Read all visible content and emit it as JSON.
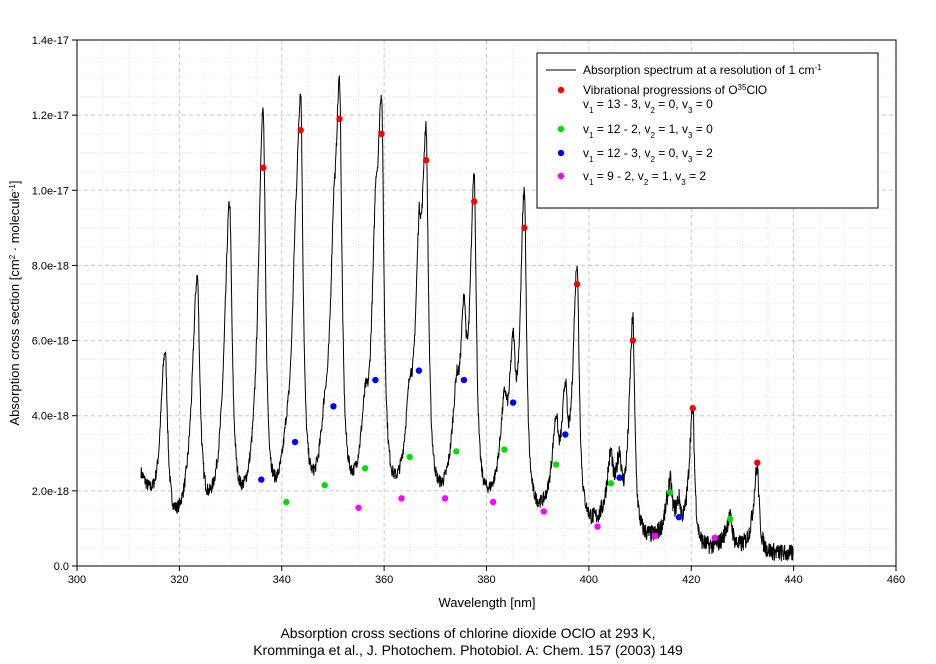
{
  "chart_data": {
    "type": "line",
    "xlabel": "Wavelength [nm]",
    "ylabel_parts": [
      "Absorption cross section [cm",
      "2",
      " · molecule",
      "-1",
      "]"
    ],
    "xlim": [
      300,
      460
    ],
    "ylim": [
      0,
      1.4e-17
    ],
    "x_ticks": [
      300,
      320,
      340,
      360,
      380,
      400,
      420,
      440,
      460
    ],
    "x_tick_labels": [
      "300",
      "320",
      "340",
      "360",
      "380",
      "400",
      "420",
      "440",
      "460"
    ],
    "y_ticks": [
      0,
      2e-18,
      4e-18,
      6e-18,
      8e-18,
      1e-17,
      1.2e-17,
      1.4e-17
    ],
    "y_tick_labels": [
      "0.0",
      "2.0e-18",
      "4.0e-18",
      "6.0e-18",
      "8.0e-18",
      "1.0e-17",
      "1.2e-17",
      "1.4e-17"
    ],
    "grid": true,
    "legend_position": "top-right",
    "spectrum": {
      "name": "Absorption spectrum at a resolution of 1 cm-1",
      "color": "#000000",
      "x_range": [
        312.5,
        440
      ],
      "baseline_points": [
        [
          312.5,
          2e-18
        ],
        [
          316,
          3e-19
        ],
        [
          322,
          5.5e-19
        ],
        [
          328,
          6.5e-19
        ],
        [
          334,
          7e-19
        ],
        [
          341,
          8e-19
        ],
        [
          348,
          9e-19
        ],
        [
          355,
          1e-18
        ],
        [
          363,
          1.05e-18
        ],
        [
          371,
          1.1e-18
        ],
        [
          380,
          1.15e-18
        ],
        [
          390,
          1e-18
        ],
        [
          400,
          8.5e-19
        ],
        [
          410,
          6e-19
        ],
        [
          420,
          4e-19
        ],
        [
          430,
          3.5e-19
        ],
        [
          440,
          3e-19
        ]
      ],
      "peaks": [
        {
          "x": 317.2,
          "y": 5.3e-18,
          "w": 0.55
        },
        {
          "x": 323.5,
          "y": 7.2e-18,
          "w": 0.55
        },
        {
          "x": 329.8,
          "y": 9.1e-18,
          "w": 0.55
        },
        {
          "x": 336.4,
          "y": 1.06e-17,
          "w": 0.5
        },
        {
          "x": 343.7,
          "y": 1.16e-17,
          "w": 0.5
        },
        {
          "x": 351.3,
          "y": 1.19e-17,
          "w": 0.5
        },
        {
          "x": 359.5,
          "y": 1.15e-17,
          "w": 0.5
        },
        {
          "x": 368.2,
          "y": 1.08e-17,
          "w": 0.5
        },
        {
          "x": 377.6,
          "y": 9.9e-18,
          "w": 0.45
        },
        {
          "x": 387.4,
          "y": 9.6e-18,
          "w": 0.45
        },
        {
          "x": 397.7,
          "y": 7.8e-18,
          "w": 0.45
        },
        {
          "x": 408.6,
          "y": 6.4e-18,
          "w": 0.4
        },
        {
          "x": 420.3,
          "y": 4.1e-18,
          "w": 0.4
        },
        {
          "x": 432.9,
          "y": 2.6e-18,
          "w": 0.4
        },
        {
          "x": 336.0,
          "y": 2.1e-18,
          "w": 0.45
        },
        {
          "x": 342.6,
          "y": 3.2e-18,
          "w": 0.45
        },
        {
          "x": 350.1,
          "y": 4.2e-18,
          "w": 0.45
        },
        {
          "x": 358.3,
          "y": 4.8e-18,
          "w": 0.45
        },
        {
          "x": 366.8,
          "y": 5.2e-18,
          "w": 0.45
        },
        {
          "x": 375.6,
          "y": 5e-18,
          "w": 0.45
        },
        {
          "x": 385.2,
          "y": 4.4e-18,
          "w": 0.45
        },
        {
          "x": 395.4,
          "y": 3.6e-18,
          "w": 0.4
        },
        {
          "x": 406.0,
          "y": 2.3e-18,
          "w": 0.4
        },
        {
          "x": 417.6,
          "y": 1.3e-18,
          "w": 0.4
        },
        {
          "x": 340.9,
          "y": 1.5e-18,
          "w": 0.5
        },
        {
          "x": 348.4,
          "y": 2e-18,
          "w": 0.5
        },
        {
          "x": 356.3,
          "y": 2.5e-18,
          "w": 0.5
        },
        {
          "x": 365.0,
          "y": 2.8e-18,
          "w": 0.5
        },
        {
          "x": 374.1,
          "y": 3e-18,
          "w": 0.5
        },
        {
          "x": 383.5,
          "y": 3.1e-18,
          "w": 0.5
        },
        {
          "x": 393.6,
          "y": 3e-18,
          "w": 0.45
        },
        {
          "x": 404.3,
          "y": 2.4e-18,
          "w": 0.45
        },
        {
          "x": 415.9,
          "y": 1.9e-18,
          "w": 0.45
        },
        {
          "x": 427.6,
          "y": 1.2e-18,
          "w": 0.5
        }
      ]
    },
    "series": [
      {
        "name": "Vibrational progressions of O35ClO",
        "legend_lines": [
          "Vibrational progressions of O",
          "35",
          "ClO"
        ],
        "legend_sub": [
          "v",
          "1",
          " = 13 - 3, v",
          "2",
          " = 0, v",
          "3",
          " = 0"
        ],
        "color": "#ff0000",
        "type": "scatter",
        "x": [
          336.4,
          343.7,
          351.3,
          359.5,
          368.2,
          377.6,
          387.4,
          397.7,
          408.6,
          420.3,
          432.9
        ],
        "y": [
          1.06e-17,
          1.16e-17,
          1.19e-17,
          1.15e-17,
          1.08e-17,
          9.7e-18,
          9e-18,
          7.5e-18,
          6e-18,
          4.2e-18,
          2.75e-18
        ]
      },
      {
        "legend_sub": [
          "v",
          "1",
          " = 12 - 2, v",
          "2",
          " = 1, v",
          "3",
          " = 0"
        ],
        "color": "#00e000",
        "type": "scatter",
        "x": [
          340.9,
          348.4,
          356.3,
          365.0,
          374.1,
          383.5,
          393.6,
          404.3,
          415.9,
          427.6
        ],
        "y": [
          1.7e-18,
          2.15e-18,
          2.6e-18,
          2.9e-18,
          3.05e-18,
          3.1e-18,
          2.7e-18,
          2.2e-18,
          1.95e-18,
          1.25e-18
        ]
      },
      {
        "legend_sub": [
          "v",
          "1",
          " = 12 - 3, v",
          "2",
          " = 0, v",
          "3",
          " = 2"
        ],
        "color": "#0000ff",
        "type": "scatter",
        "x": [
          336.0,
          342.6,
          350.1,
          358.3,
          366.8,
          375.6,
          385.2,
          395.4,
          406.0,
          417.6
        ],
        "y": [
          2.3e-18,
          3.3e-18,
          4.25e-18,
          4.95e-18,
          5.2e-18,
          4.95e-18,
          4.35e-18,
          3.5e-18,
          2.35e-18,
          1.3e-18
        ]
      },
      {
        "legend_sub": [
          "v",
          "1",
          " =   9 - 2, v",
          "2",
          " = 1, v",
          "3",
          " = 2"
        ],
        "color": "#ff00ff",
        "type": "scatter",
        "x": [
          355.0,
          363.4,
          371.9,
          381.3,
          391.2,
          401.7,
          412.9,
          424.6
        ],
        "y": [
          1.55e-18,
          1.8e-18,
          1.8e-18,
          1.7e-18,
          1.45e-18,
          1.05e-18,
          8e-19,
          7.5e-19
        ]
      }
    ],
    "legend_spectrum_parts": [
      "Absorption spectrum at a resolution of 1 cm",
      "-1"
    ]
  },
  "caption": {
    "line1": "Absorption cross sections of chlorine dioxide OClO at 293 K,",
    "line2": "Kromminga et al., J. Photochem. Photobiol. A: Chem. 157 (2003) 149"
  }
}
